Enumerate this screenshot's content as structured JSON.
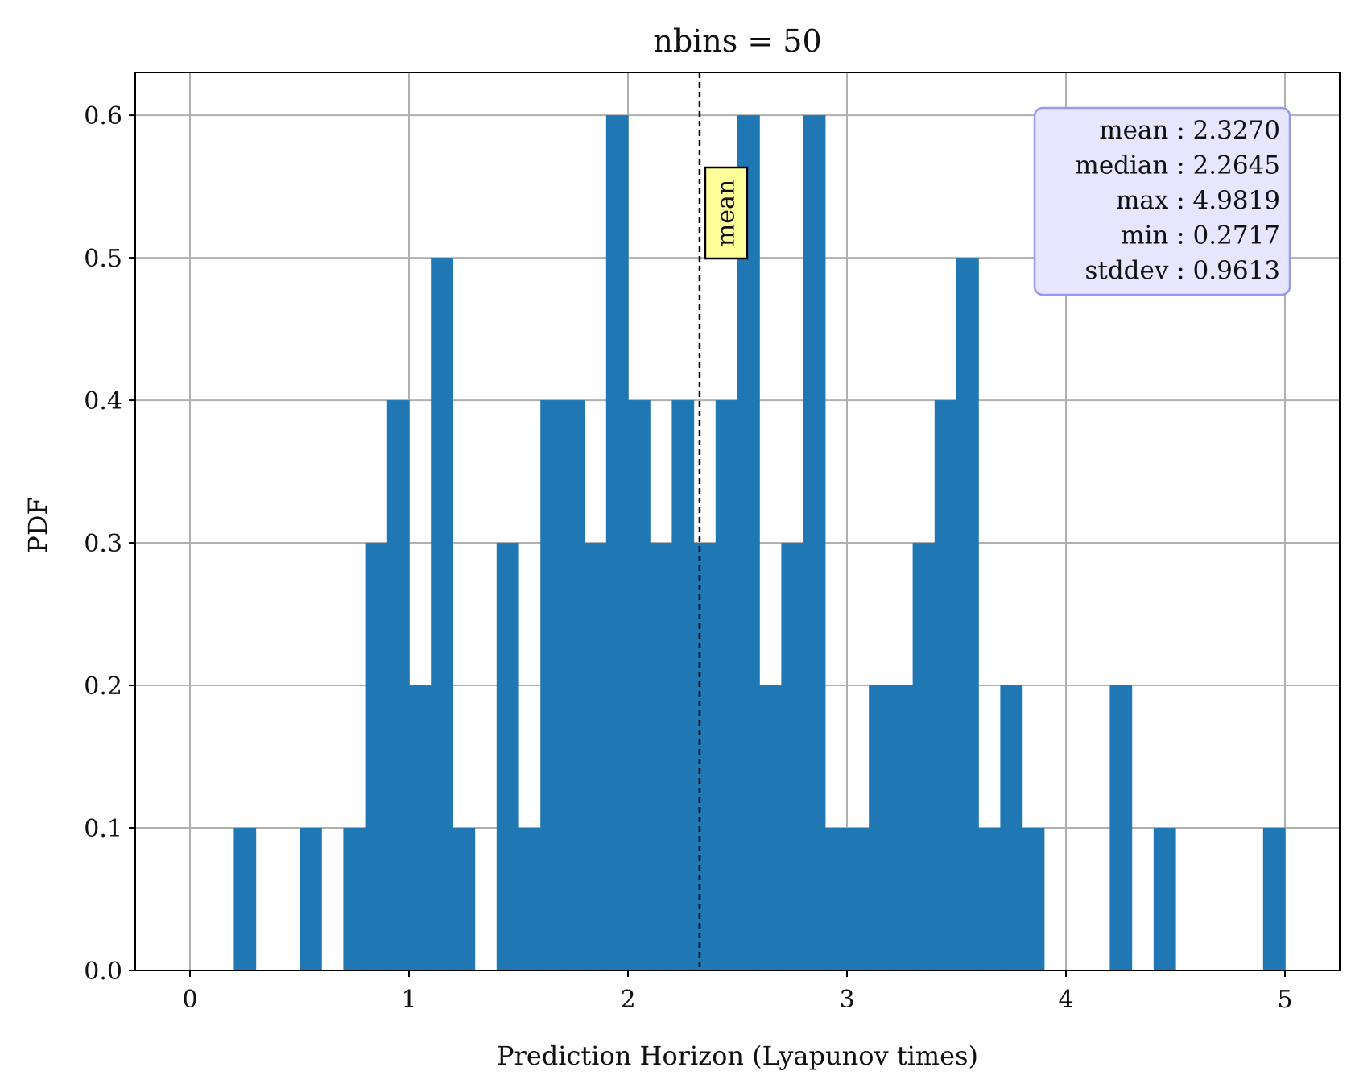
{
  "chart_data": {
    "type": "bar",
    "title": "nbins = 50",
    "xlabel": "Prediction Horizon (Lyapunov times)",
    "ylabel": "PDF",
    "xlim": [
      -0.25,
      5.25
    ],
    "ylim": [
      0.0,
      0.63
    ],
    "xticks": [
      0,
      1,
      2,
      3,
      4,
      5
    ],
    "xtick_labels": [
      "0",
      "1",
      "2",
      "3",
      "4",
      "5"
    ],
    "yticks": [
      0.0,
      0.1,
      0.2,
      0.3,
      0.4,
      0.5,
      0.6
    ],
    "ytick_labels": [
      "0.0",
      "0.1",
      "0.2",
      "0.3",
      "0.4",
      "0.5",
      "0.6"
    ],
    "grid": true,
    "bin_width": 0.1,
    "bin_starts": [
      0.2,
      0.3,
      0.4,
      0.5,
      0.6,
      0.7,
      0.8,
      0.9,
      1.0,
      1.1,
      1.2,
      1.3,
      1.4,
      1.5,
      1.6,
      1.7,
      1.8,
      1.9,
      2.0,
      2.1,
      2.2,
      2.3,
      2.4,
      2.5,
      2.6,
      2.7,
      2.8,
      2.9,
      3.0,
      3.1,
      3.2,
      3.3,
      3.4,
      3.5,
      3.6,
      3.7,
      3.8,
      3.9,
      4.0,
      4.1,
      4.2,
      4.3,
      4.4,
      4.5,
      4.6,
      4.7,
      4.8,
      4.9
    ],
    "values": [
      0.1,
      0.0,
      0.0,
      0.1,
      0.0,
      0.1,
      0.3,
      0.4,
      0.2,
      0.5,
      0.1,
      0.0,
      0.3,
      0.1,
      0.4,
      0.4,
      0.3,
      0.6,
      0.4,
      0.3,
      0.4,
      0.3,
      0.4,
      0.6,
      0.2,
      0.3,
      0.6,
      0.1,
      0.1,
      0.2,
      0.2,
      0.3,
      0.4,
      0.5,
      0.1,
      0.2,
      0.1,
      0.0,
      0.0,
      0.0,
      0.2,
      0.0,
      0.1,
      0.0,
      0.0,
      0.0,
      0.0,
      0.1
    ],
    "bar_color": "#1f77b4",
    "mean_line": {
      "x": 2.327,
      "label": "mean",
      "style": "dashed",
      "color": "#000000"
    },
    "stats_box": {
      "placement": "top-right",
      "rows": [
        {
          "label": "mean",
          "value": "2.3270"
        },
        {
          "label": "median",
          "value": "2.2645"
        },
        {
          "label": "max",
          "value": "4.9819"
        },
        {
          "label": "min",
          "value": "0.2717"
        },
        {
          "label": "stddev",
          "value": "0.9613"
        }
      ],
      "background": "#e6e6ff",
      "border": "#9999ee"
    },
    "mean_label_box": {
      "background": "#ffff99",
      "border": "#000000"
    }
  }
}
